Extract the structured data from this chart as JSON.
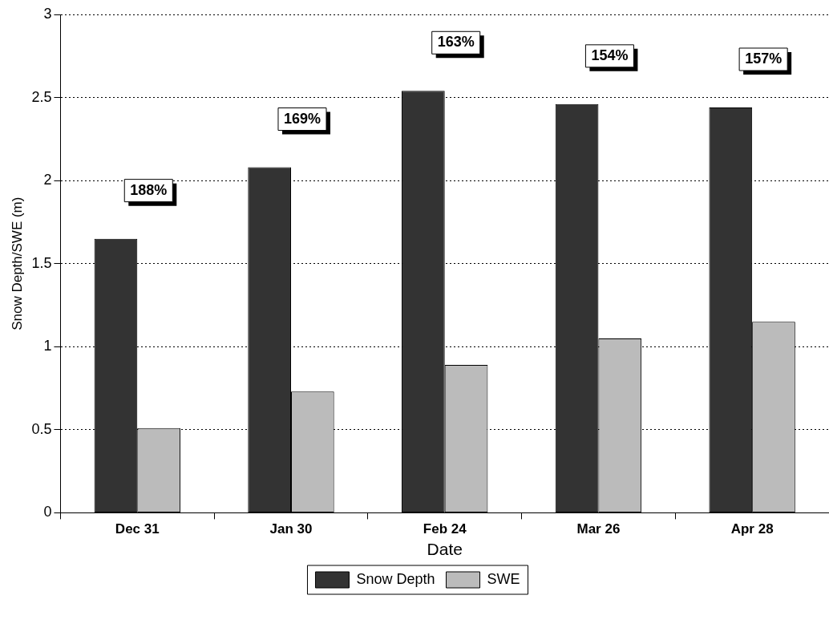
{
  "chart_data": {
    "type": "bar",
    "xlabel": "Date",
    "ylabel": "Snow Depth/SWE (m)",
    "categories": [
      "Dec 31",
      "Jan 30",
      "Feb 24",
      "Mar 26",
      "Apr 28"
    ],
    "series": [
      {
        "name": "Snow Depth",
        "color": "#333333",
        "values": [
          1.65,
          2.08,
          2.54,
          2.46,
          2.44
        ]
      },
      {
        "name": "SWE",
        "color": "#bbbbbb",
        "values": [
          0.51,
          0.73,
          0.89,
          1.05,
          1.15
        ]
      }
    ],
    "ylim": [
      0,
      3
    ],
    "yticks": [
      0,
      0.5,
      1,
      1.5,
      2,
      2.5,
      3
    ],
    "grid": "y",
    "legend": "bottom",
    "annotations": [
      "188%",
      "169%",
      "163%",
      "154%",
      "157%"
    ]
  }
}
